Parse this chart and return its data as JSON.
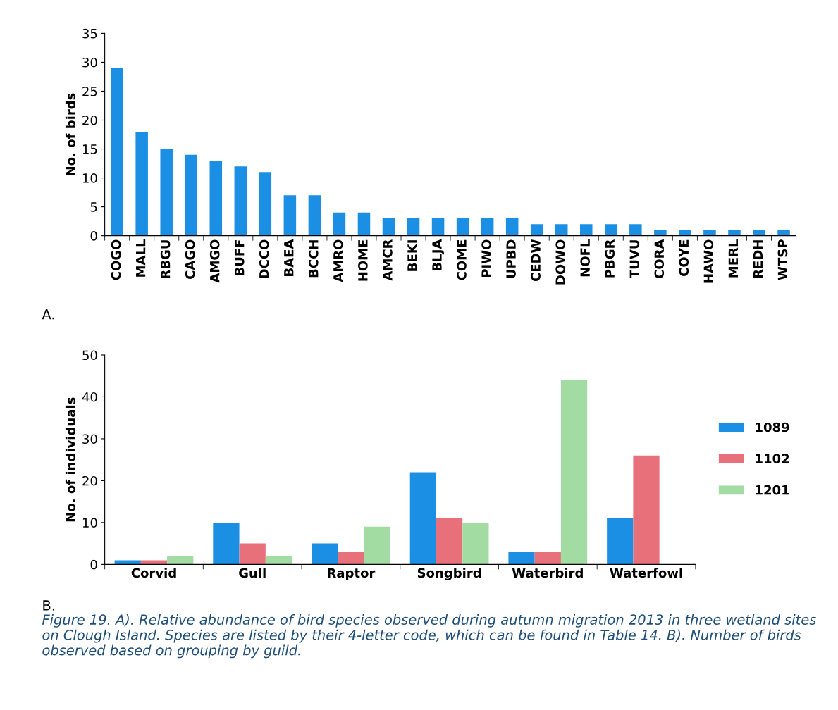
{
  "chart_data": [
    {
      "type": "bar",
      "ylabel": "No. of birds",
      "categories": [
        "COGO",
        "MALL",
        "RBGU",
        "CAGO",
        "AMGO",
        "BUFF",
        "DCCO",
        "BAEA",
        "BCCH",
        "AMRO",
        "HOME",
        "AMCR",
        "BEKI",
        "BLJA",
        "COME",
        "PIWO",
        "UPBD",
        "CEDW",
        "DOWO",
        "NOFL",
        "PBGR",
        "TUVU",
        "CORA",
        "COYE",
        "HAWO",
        "MERL",
        "REDH",
        "WTSP"
      ],
      "values": [
        29,
        18,
        15,
        14,
        13,
        12,
        11,
        7,
        7,
        4,
        4,
        3,
        3,
        3,
        3,
        3,
        3,
        2,
        2,
        2,
        2,
        2,
        1,
        1,
        1,
        1,
        1,
        1
      ],
      "color": "#1a8fe3",
      "ylim": [
        0,
        35
      ],
      "yticks": [
        0,
        5,
        10,
        15,
        20,
        25,
        30,
        35
      ],
      "grid": false,
      "legend": false,
      "annotations": [
        "A."
      ]
    },
    {
      "type": "bar",
      "ylabel": "No. of individuals",
      "categories": [
        "Corvid",
        "Gull",
        "Raptor",
        "Songbird",
        "Waterbird",
        "Waterfowl"
      ],
      "series": [
        {
          "name": "1089",
          "color": "#1a8fe3",
          "values": [
            1,
            10,
            5,
            22,
            3,
            11
          ]
        },
        {
          "name": "1102",
          "color": "#e8707a",
          "values": [
            1,
            5,
            3,
            11,
            3,
            26
          ]
        },
        {
          "name": "1201",
          "color": "#a3dca3",
          "values": [
            2,
            2,
            9,
            10,
            44,
            0
          ]
        }
      ],
      "ylim": [
        0,
        50
      ],
      "yticks": [
        0,
        10,
        20,
        30,
        40,
        50
      ],
      "grid": false,
      "legend": "right",
      "annotations": [
        "B.",
        "Figure 19. A). Relative abundance of bird species observed during autumn migration 2013 in three wetland sites on Clough Island. Species are listed by their 4-letter code, which can be found in Table 14. B). Number of birds observed based on grouping by guild."
      ]
    }
  ]
}
